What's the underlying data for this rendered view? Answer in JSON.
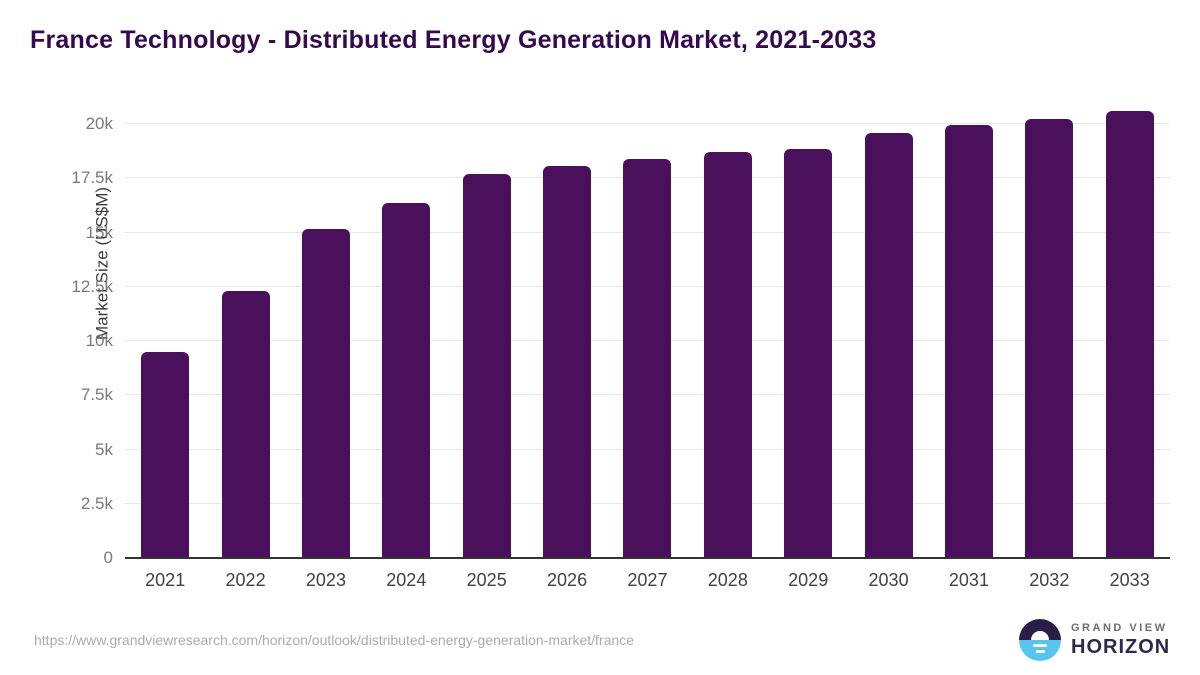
{
  "page": {
    "source_url": "https://www.grandviewresearch.com/horizon/outlook/distributed-energy-generation-market/france"
  },
  "logo": {
    "line1": "GRAND VIEW",
    "line2": "HORIZON"
  },
  "chart_data": {
    "type": "bar",
    "title": "France Technology - Distributed Energy Generation Market, 2021-2033",
    "ylabel": "Market Size (US$M)",
    "xlabel": "",
    "categories": [
      "2021",
      "2022",
      "2023",
      "2024",
      "2025",
      "2026",
      "2027",
      "2028",
      "2029",
      "2030",
      "2031",
      "2032",
      "2033"
    ],
    "values": [
      9500,
      12300,
      15150,
      16350,
      17700,
      18050,
      18400,
      18700,
      18850,
      19600,
      19950,
      20250,
      20600
    ],
    "ylim": [
      0,
      20000
    ],
    "yticks": [
      0,
      2500,
      5000,
      7500,
      10000,
      12500,
      15000,
      17500,
      20000
    ],
    "ytick_labels": [
      "0",
      "2.5k",
      "5k",
      "7.5k",
      "10k",
      "12.5k",
      "15k",
      "17.5k",
      "20k"
    ],
    "grid": true,
    "legend_position": "none",
    "colors": {
      "bar": "#4a105c",
      "title": "#330a4e",
      "gridline": "#e8e8e8",
      "axis_line": "#333333",
      "tick_text": "#7a7a7a",
      "xlabel_text": "#424242",
      "url_text": "#ababab",
      "logo_navy": "#2a1e47",
      "logo_blue": "#58c5ee"
    }
  }
}
